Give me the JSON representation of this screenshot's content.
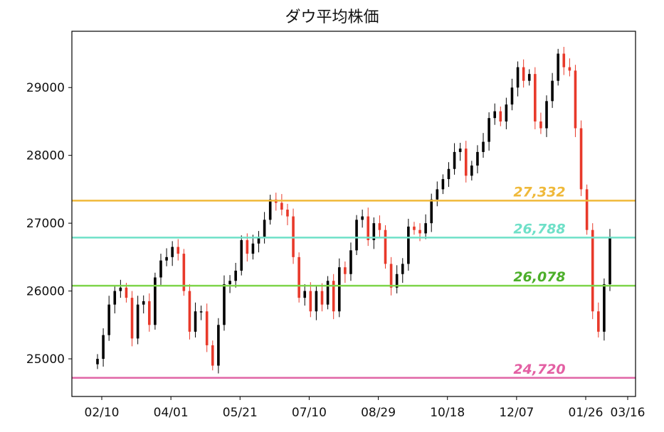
{
  "chart_data": {
    "type": "candlestick",
    "title": "ダウ平均株価",
    "xlabel": "",
    "ylabel": "",
    "ylim": [
      24445,
      29830
    ],
    "yticks": [
      25000,
      26000,
      27000,
      28000,
      29000
    ],
    "xtick_labels": [
      "02/10",
      "04/01",
      "05/21",
      "07/10",
      "08/29",
      "10/18",
      "12/07",
      "01/26",
      "03/16"
    ],
    "grid": false,
    "colors": {
      "up": "#000000",
      "down": "#e8392a"
    },
    "close": [
      25000,
      25350,
      25800,
      26000,
      26050,
      25900,
      25300,
      25800,
      25850,
      25500,
      26200,
      26450,
      26500,
      26650,
      26550,
      26000,
      25400,
      25700,
      25700,
      25200,
      24900,
      25500,
      26100,
      26150,
      26300,
      26750,
      26550,
      26700,
      26800,
      27050,
      27350,
      27300,
      27200,
      27100,
      26500,
      25900,
      26000,
      25700,
      26000,
      25800,
      26150,
      25700,
      26350,
      26250,
      26600,
      27050,
      27100,
      26750,
      27000,
      26900,
      26400,
      26050,
      26250,
      26400,
      26950,
      26900,
      26850,
      27000,
      27350,
      27500,
      27650,
      27800,
      28050,
      28100,
      27700,
      27850,
      28050,
      28200,
      28550,
      28650,
      28500,
      28750,
      29000,
      29300,
      29100,
      29200,
      28500,
      28400,
      28800,
      29100,
      29500,
      29300,
      29250,
      28400,
      27500,
      26900,
      25700,
      25400,
      26100,
      26800
    ],
    "levels": [
      {
        "value": 27332,
        "label": "27,332",
        "color": "#f0b93a",
        "label_color": "#efb93a"
      },
      {
        "value": 26788,
        "label": "26,788",
        "color": "#6fe0c8",
        "label_color": "#6fe0c8"
      },
      {
        "value": 26078,
        "label": "26,078",
        "color": "#7ed44a",
        "label_color": "#4caf2a"
      },
      {
        "value": 24720,
        "label": "24,720",
        "color": "#e066a6",
        "label_color": "#e35fa3"
      }
    ]
  }
}
